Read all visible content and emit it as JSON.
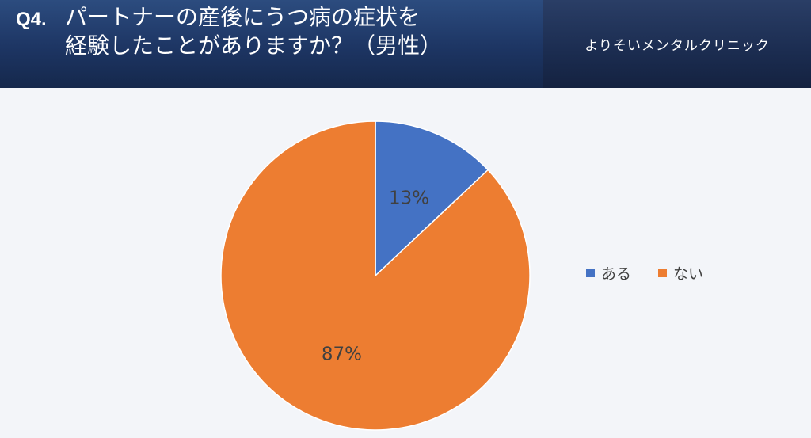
{
  "header": {
    "question_number": "Q4.",
    "question_line1": "パートナーの産後にうつ病の症状を",
    "question_line2": "経験したことがありますか？（男性）",
    "brand": "よりそいメンタルクリニック"
  },
  "chart_data": {
    "type": "pie",
    "categories": [
      "ある",
      "ない"
    ],
    "values": [
      13,
      87
    ],
    "labels": [
      "13%",
      "87%"
    ],
    "colors": [
      "#4472c4",
      "#ed7d31"
    ],
    "start_angle": "12-o-clock",
    "direction": "clockwise",
    "legend_placement": "right"
  }
}
